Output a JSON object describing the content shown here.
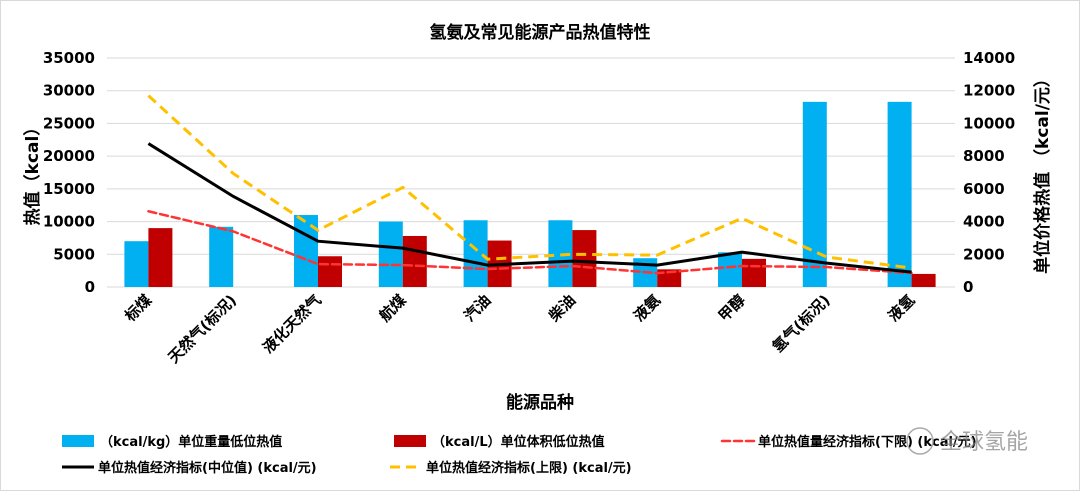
{
  "chart_data": {
    "type": "bar+line",
    "title": "氢氨及常见能源产品热值特性",
    "xlabel": "能源品种",
    "ylabel": "热值（kcal）",
    "y2label": "单位价格热值 （kcal/元）",
    "ylim": [
      0,
      35000
    ],
    "y2lim": [
      0,
      14000
    ],
    "yticks": [
      "0",
      "5000",
      "10000",
      "15000",
      "20000",
      "25000",
      "30000",
      "35000"
    ],
    "y2ticks": [
      "0",
      "2000",
      "4000",
      "6000",
      "8000",
      "10000",
      "12000",
      "14000"
    ],
    "grid": true,
    "legend": "bottom",
    "categories": [
      "标煤",
      "天然气(标况)",
      "液化天然气",
      "航煤",
      "汽油",
      "柴油",
      "液氨",
      "甲醇",
      "氢气(标况)",
      "液氢"
    ],
    "series": [
      {
        "name": "（kcal/kg）单位重量低位热值",
        "type": "bar",
        "axis": "left",
        "color": "#00b0f0",
        "values": [
          7000,
          9200,
          11000,
          10000,
          10200,
          10200,
          4400,
          5300,
          28300,
          28300
        ]
      },
      {
        "name": "（kcal/L）单位体积低位热值",
        "type": "bar",
        "axis": "left",
        "color": "#c00000",
        "values": [
          9000,
          null,
          4700,
          7800,
          7100,
          8700,
          2700,
          4300,
          null,
          2000
        ]
      },
      {
        "name": "单位热值量经济指标(下限)  (kcal/元)",
        "type": "line",
        "axis": "right",
        "color": "#ff3333",
        "dash": "hollow",
        "values": [
          4630,
          3400,
          1400,
          1340,
          1100,
          1280,
          850,
          1280,
          1220,
          850
        ]
      },
      {
        "name": "单位热值经济指标(中位值)   (kcal/元)",
        "type": "line",
        "axis": "right",
        "color": "#000000",
        "dash": "solid",
        "values": [
          8770,
          5540,
          2800,
          2375,
          1340,
          1580,
          1340,
          2130,
          1460,
          910
        ]
      },
      {
        "name": "单位热值经济指标(上限)   (kcal/元)",
        "type": "line",
        "axis": "right",
        "color": "#ffc000",
        "dash": "dashed",
        "values": [
          11700,
          6940,
          3470,
          6090,
          1700,
          2000,
          1950,
          4200,
          1830,
          1160
        ]
      }
    ]
  },
  "watermark": "全球氢能"
}
